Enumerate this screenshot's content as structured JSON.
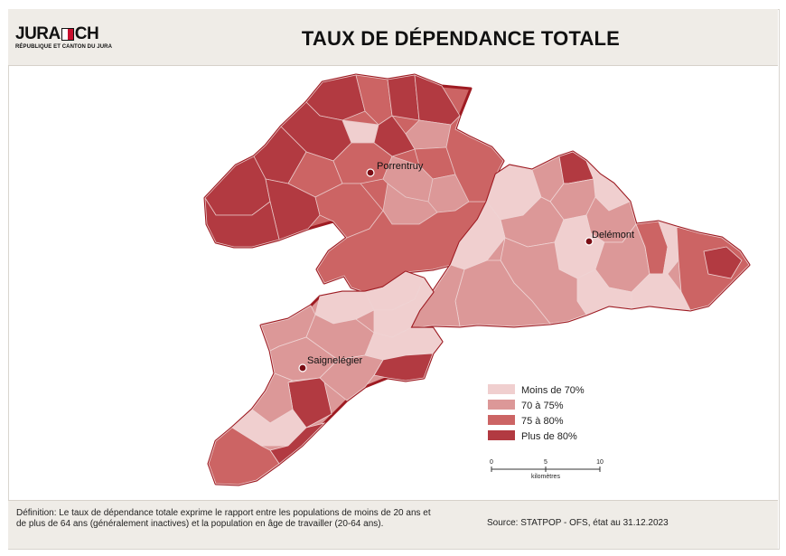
{
  "header": {
    "logo_main_left": "JURA",
    "logo_main_right": "CH",
    "logo_subtitle": "RÉPUBLIQUE ET CANTON DU JURA",
    "title": "TAUX DE DÉPENDANCE TOTALE"
  },
  "colors": {
    "moins_70": "#f0cfcf",
    "de_70_75": "#dc9898",
    "de_75_80": "#cc6464",
    "plus_80": "#b23a41",
    "border": "#9e1b22",
    "city_dot": "#7a0d14"
  },
  "cities": [
    {
      "name": "Porrentruy"
    },
    {
      "name": "Delémont"
    },
    {
      "name": "Saignelégier"
    }
  ],
  "legend": {
    "items": [
      {
        "label": "Moins de 70%",
        "color": "#f0cfcf"
      },
      {
        "label": "70 à 75%",
        "color": "#dc9898"
      },
      {
        "label": "75 à 80%",
        "color": "#cc6464"
      },
      {
        "label": "Plus de 80%",
        "color": "#b23a41"
      }
    ]
  },
  "scale": {
    "ticks": [
      "0",
      "5",
      "10"
    ],
    "unit": "kilomètres"
  },
  "footer": {
    "definition": "Définition: Le taux de dépendance totale exprime le rapport entre les populations de moins de 20 ans et de plus de 64 ans (généralement inactives) et la population en âge de travailler (20-64 ans).",
    "source": "Source: STATPOP - OFS, état au 31.12.2023"
  }
}
